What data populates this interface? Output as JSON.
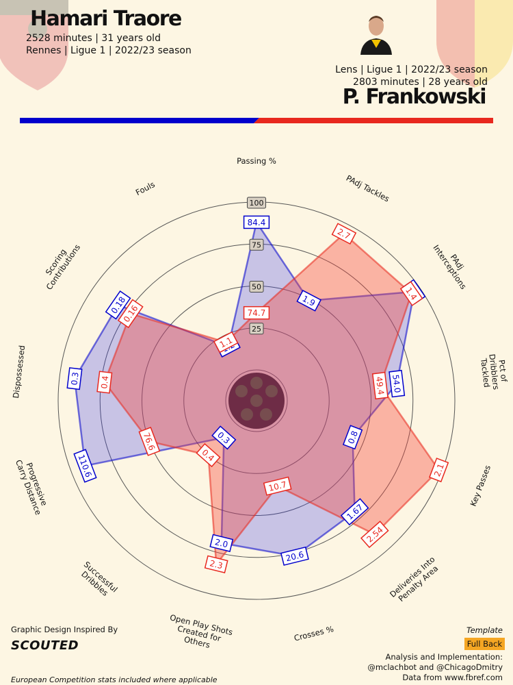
{
  "player1": {
    "name": "Hamari Traore",
    "line2": "2528 minutes | 31 years old",
    "line3": "Rennes | Ligue 1 | 2022/23 season",
    "color": "#0000cc"
  },
  "player2": {
    "name": "P. Frankowski",
    "line1": "Lens | Ligue 1 | 2022/23 season",
    "line2": "2803 minutes | 28 years old",
    "color": "#e8281e"
  },
  "footer": {
    "credit_title": "Graphic Design Inspired By",
    "credit_logo": "SCOUTED",
    "note": "European Competition stats included where applicable",
    "template_label": "Template",
    "template_value": "Full Back",
    "analysis_lines": [
      "Analysis and Implementation:",
      "@mclachbot and @ChicagoDmitry",
      "Data from www.fbref.com"
    ]
  },
  "icons": [
    "rennes-crest-icon",
    "lens-crest-icon",
    "player-photo-icon",
    "soccer-ball-icon"
  ],
  "chart_data": {
    "type": "radar",
    "title": "",
    "scale_ticks": [
      "25",
      "50",
      "75",
      "100"
    ],
    "metrics": [
      "Passing %",
      "PAdj Tackles",
      "PAdj\nInterceptions",
      "Pct of\nDribblers\nTackled",
      "Key Passes",
      "Deliveries Into\nPenalty Area",
      "Crosses %",
      "Open Play Shots\nCreated for\nOthers",
      "Successful\nDribbles",
      "Progressive\nCarry Distance",
      "Dispossessed",
      "Scoring\nContributions",
      "Fouls"
    ],
    "series": [
      {
        "name": "Hamari Traore",
        "values": [
          "84.4",
          "1.9",
          "1.4",
          "54.0",
          "0.8",
          "1.67",
          "20.6",
          "2.0",
          "0.3",
          "110.6",
          "0.3",
          "0.18",
          "1.2"
        ],
        "percentiles": [
          88,
          49,
          96,
          66,
          43,
          70,
          77,
          69,
          11,
          91,
          91,
          82,
          18
        ]
      },
      {
        "name": "P. Frankowski",
        "values": [
          "74.7",
          "2.7",
          "1.4",
          "49.4",
          "2.1",
          "2.54",
          "10.7",
          "2.3",
          "0.4",
          "76.6",
          "0.4",
          "0.16",
          "1.1"
        ],
        "percentiles": [
          34,
          94,
          94,
          56,
          98,
          88,
          34,
          82,
          25,
          50,
          73,
          73,
          21
        ]
      }
    ]
  }
}
